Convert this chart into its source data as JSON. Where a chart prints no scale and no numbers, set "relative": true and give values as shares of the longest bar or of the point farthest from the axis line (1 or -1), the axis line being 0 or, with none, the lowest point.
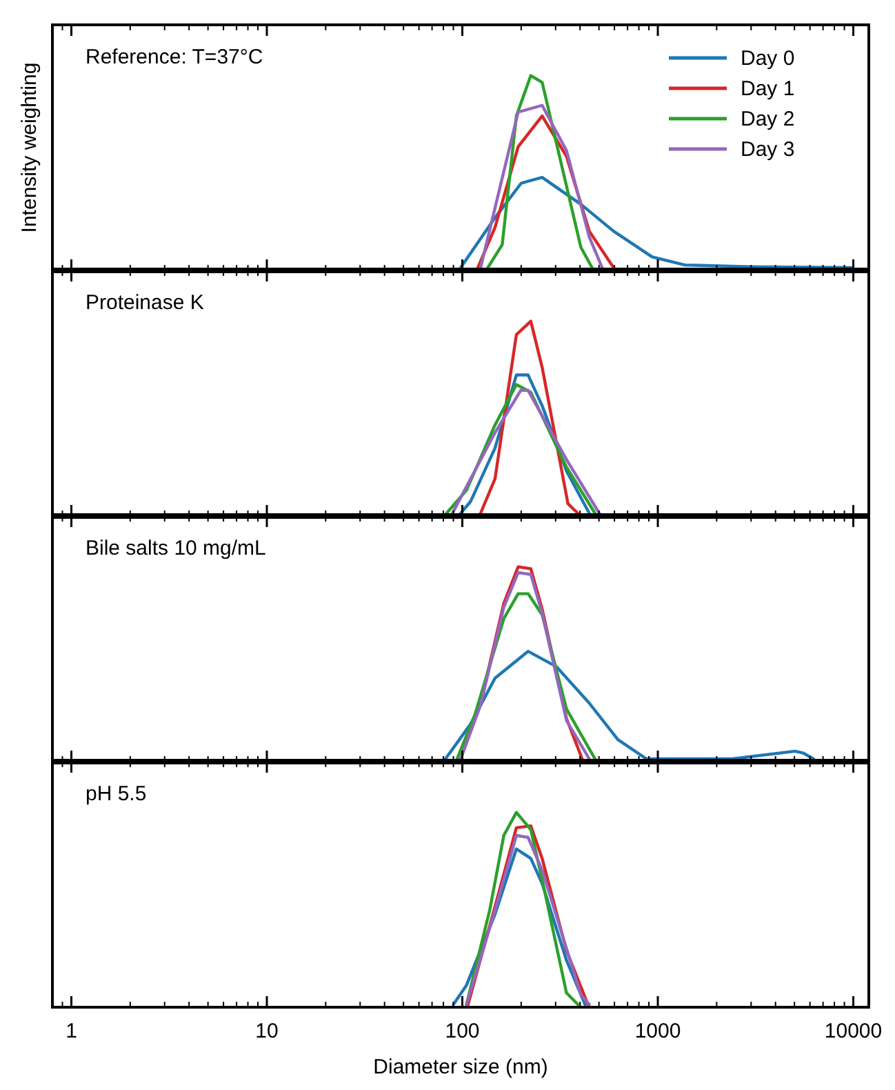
{
  "chart_data": [
    {
      "type": "line",
      "title": "Reference: T=37°C",
      "ylabel": "Intensity weighting",
      "relative": true,
      "log": "x",
      "xlim": [
        0.8,
        12000
      ],
      "xticks": [
        1,
        10,
        100,
        1000,
        10000
      ],
      "tick_labels": false,
      "legend": "top right",
      "series": [
        {
          "name": "Day 0",
          "color": "#1f77b4",
          "x": [
            98,
            147,
            200,
            256,
            404,
            594,
            935,
            1376,
            3000,
            9800
          ],
          "values": [
            0,
            0.26,
            0.44,
            0.47,
            0.33,
            0.19,
            0.056,
            0.014,
            0.005,
            0
          ]
        },
        {
          "name": "Day 1",
          "color": "#d62728",
          "x": [
            120,
            147,
            193,
            256,
            341,
            446,
            594
          ],
          "values": [
            0,
            0.21,
            0.63,
            0.79,
            0.58,
            0.19,
            0
          ]
        },
        {
          "name": "Day 2",
          "color": "#2ca02c",
          "x": [
            135,
            160,
            189,
            224,
            256,
            404,
            461
          ],
          "values": [
            0,
            0.12,
            0.79,
            1,
            0.965,
            0.106,
            0
          ]
        },
        {
          "name": "Day 3",
          "color": "#9467bd",
          "x": [
            124,
            193,
            256,
            341,
            446,
            519
          ],
          "values": [
            0,
            0.81,
            0.845,
            0.61,
            0.16,
            0
          ]
        }
      ]
    },
    {
      "type": "line",
      "title": "Proteinase K",
      "relative": true,
      "log": "x",
      "xlim": [
        0.8,
        12000
      ],
      "xticks": [
        1,
        10,
        100,
        1000,
        10000
      ],
      "tick_labels": false,
      "series": [
        {
          "color": "#1f77b4",
          "x": [
            98,
            110,
            147,
            189,
            217,
            256,
            341,
            446
          ],
          "values": [
            0,
            0.06,
            0.34,
            0.72,
            0.72,
            0.56,
            0.22,
            0
          ]
        },
        {
          "color": "#d62728",
          "x": [
            124,
            147,
            189,
            224,
            256,
            347,
            390
          ],
          "values": [
            0,
            0.18,
            0.93,
            1,
            0.76,
            0.05,
            0
          ]
        },
        {
          "color": "#2ca02c",
          "x": [
            83,
            105,
            147,
            189,
            224,
            341,
            477
          ],
          "values": [
            0,
            0.12,
            0.46,
            0.67,
            0.63,
            0.24,
            0
          ]
        },
        {
          "color": "#9467bd",
          "x": [
            89,
            147,
            199,
            217,
            341,
            502
          ],
          "values": [
            0,
            0.42,
            0.64,
            0.64,
            0.28,
            0
          ]
        }
      ]
    },
    {
      "type": "line",
      "title": "Bile salts 10 mg/mL",
      "relative": true,
      "log": "x",
      "xlim": [
        0.8,
        12000
      ],
      "xticks": [
        1,
        10,
        100,
        1000,
        10000
      ],
      "tick_labels": false,
      "series": [
        {
          "color": "#1f77b4",
          "x": [
            82,
            110,
            147,
            217,
            303,
            446,
            625,
            874,
            2400,
            5030,
            5550,
            6250
          ],
          "values": [
            0,
            0.18,
            0.42,
            0.56,
            0.48,
            0.29,
            0.1,
            0,
            0,
            0.04,
            0.03,
            0
          ]
        },
        {
          "color": "#d62728",
          "x": [
            98,
            124,
            163,
            193,
            224,
            256,
            341,
            410
          ],
          "values": [
            0,
            0.29,
            0.81,
            1,
            0.99,
            0.78,
            0.21,
            0
          ]
        },
        {
          "color": "#2ca02c",
          "x": [
            94,
            116,
            163,
            193,
            217,
            256,
            341,
            477
          ],
          "values": [
            0,
            0.23,
            0.73,
            0.86,
            0.86,
            0.75,
            0.26,
            0
          ]
        },
        {
          "color": "#9467bd",
          "x": [
            98,
            124,
            163,
            193,
            224,
            256,
            341,
            446
          ],
          "values": [
            0,
            0.28,
            0.79,
            0.97,
            0.96,
            0.76,
            0.2,
            0
          ]
        }
      ]
    },
    {
      "type": "line",
      "title": "pH 5.5",
      "xlabel": "Diameter size (nm)",
      "relative": true,
      "log": "x",
      "xlim": [
        0.8,
        12000
      ],
      "xticks": [
        1,
        10,
        100,
        1000,
        10000
      ],
      "tick_labels": "x",
      "series": [
        {
          "color": "#1f77b4",
          "x": [
            90,
            105,
            147,
            189,
            224,
            256,
            341,
            424
          ],
          "values": [
            0,
            0.1,
            0.47,
            0.81,
            0.76,
            0.63,
            0.23,
            0
          ]
        },
        {
          "color": "#d62728",
          "x": [
            107,
            147,
            189,
            224,
            256,
            341,
            439
          ],
          "values": [
            0,
            0.51,
            0.92,
            0.93,
            0.76,
            0.28,
            0
          ]
        },
        {
          "color": "#2ca02c",
          "x": [
            105,
            138,
            163,
            189,
            224,
            256,
            341,
            390
          ],
          "values": [
            0,
            0.49,
            0.88,
            1,
            0.91,
            0.65,
            0.06,
            0
          ]
        },
        {
          "color": "#9467bd",
          "x": [
            105,
            147,
            189,
            217,
            256,
            404,
            446
          ],
          "values": [
            0,
            0.49,
            0.88,
            0.87,
            0.7,
            0.05,
            0
          ]
        }
      ]
    }
  ]
}
